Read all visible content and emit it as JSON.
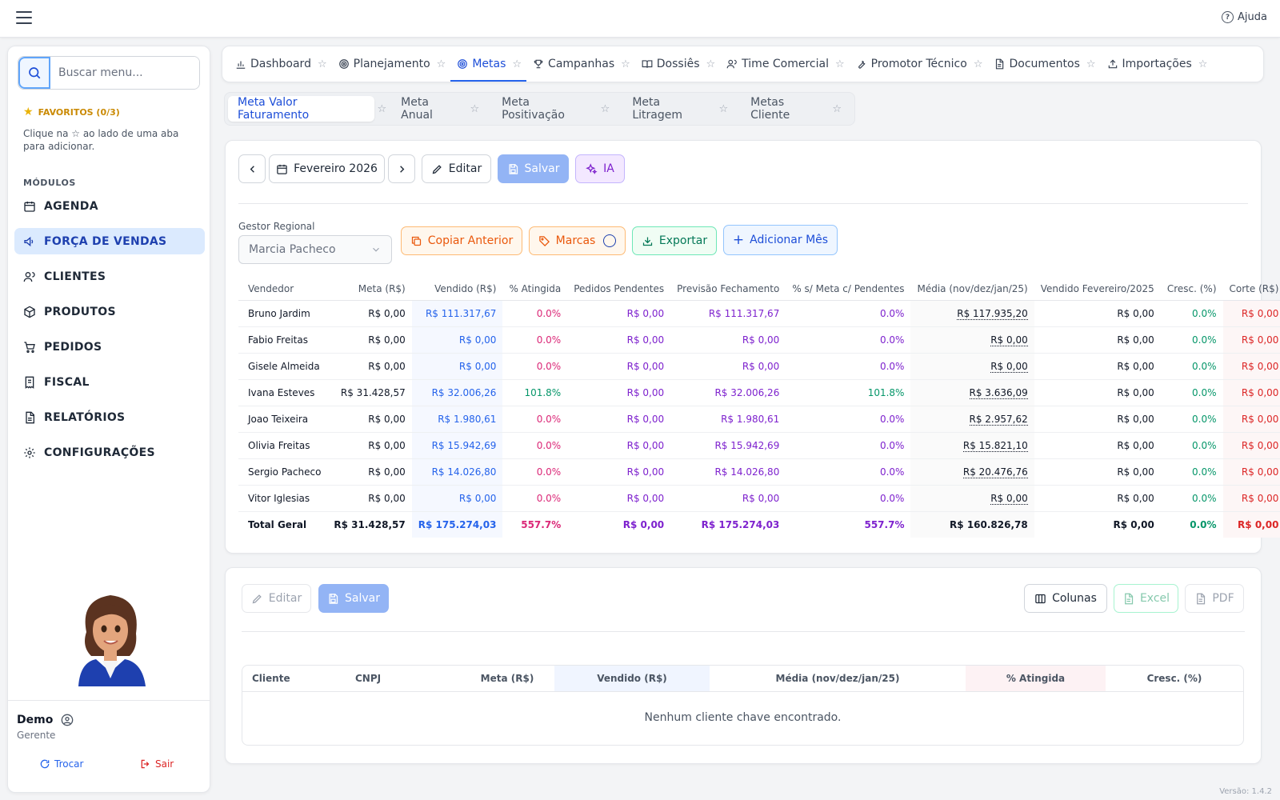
{
  "header": {
    "help_label": "Ajuda"
  },
  "sidebar": {
    "search_placeholder": "Buscar menu...",
    "favorites_title": "FAVORITOS (0/3)",
    "favorites_hint": "Clique na ☆ ao lado de uma aba para adicionar.",
    "modules_title": "MÓDULOS",
    "items": [
      {
        "label": "AGENDA",
        "icon": "calendar-icon"
      },
      {
        "label": "FORÇA DE VENDAS",
        "icon": "megaphone-icon",
        "active": true
      },
      {
        "label": "CLIENTES",
        "icon": "users-icon"
      },
      {
        "label": "PRODUTOS",
        "icon": "package-icon"
      },
      {
        "label": "PEDIDOS",
        "icon": "cart-icon"
      },
      {
        "label": "FISCAL",
        "icon": "receipt-icon"
      },
      {
        "label": "RELATÓRIOS",
        "icon": "file-icon"
      },
      {
        "label": "CONFIGURAÇÕES",
        "icon": "gear-icon"
      }
    ],
    "user": {
      "name": "Demo",
      "role": "Gerente",
      "switch_label": "Trocar",
      "logout_label": "Sair"
    }
  },
  "main_tabs": [
    {
      "label": "Dashboard"
    },
    {
      "label": "Planejamento"
    },
    {
      "label": "Metas",
      "active": true
    },
    {
      "label": "Campanhas"
    },
    {
      "label": "Dossiês"
    },
    {
      "label": "Time Comercial"
    },
    {
      "label": "Promotor Técnico"
    },
    {
      "label": "Documentos"
    },
    {
      "label": "Importações"
    }
  ],
  "sub_tabs": [
    {
      "label": "Meta Valor Faturamento",
      "active": true
    },
    {
      "label": "Meta Anual"
    },
    {
      "label": "Meta Positivação"
    },
    {
      "label": "Meta Litragem"
    },
    {
      "label": "Metas Cliente"
    }
  ],
  "toolbar": {
    "period": "Fevereiro 2026",
    "edit": "Editar",
    "save": "Salvar",
    "ai": "IA"
  },
  "filters": {
    "gestor_label": "Gestor Regional",
    "gestor_value": "Marcia Pacheco",
    "copy": "Copiar Anterior",
    "brands": "Marcas",
    "export": "Exportar",
    "add_month": "Adicionar Mês"
  },
  "table": {
    "columns": [
      "Vendedor",
      "Meta (R$)",
      "Vendido (R$)",
      "% Atingida",
      "Pedidos Pendentes",
      "Previsão Fechamento",
      "% s/ Meta c/ Pendentes",
      "Média (nov/dez/jan/25)",
      "Vendido Fevereiro/2025",
      "Cresc. (%)",
      "Corte (R$)"
    ],
    "rows": [
      [
        "Bruno Jardim",
        "R$ 0,00",
        "R$ 111.317,67",
        "0.0%",
        "R$ 0,00",
        "R$ 111.317,67",
        "0.0%",
        "R$ 117.935,20",
        "R$ 0,00",
        "0.0%",
        "R$ 0,00"
      ],
      [
        "Fabio Freitas",
        "R$ 0,00",
        "R$ 0,00",
        "0.0%",
        "R$ 0,00",
        "R$ 0,00",
        "0.0%",
        "R$ 0,00",
        "R$ 0,00",
        "0.0%",
        "R$ 0,00"
      ],
      [
        "Gisele Almeida",
        "R$ 0,00",
        "R$ 0,00",
        "0.0%",
        "R$ 0,00",
        "R$ 0,00",
        "0.0%",
        "R$ 0,00",
        "R$ 0,00",
        "0.0%",
        "R$ 0,00"
      ],
      [
        "Ivana Esteves",
        "R$ 31.428,57",
        "R$ 32.006,26",
        "101.8%",
        "R$ 0,00",
        "R$ 32.006,26",
        "101.8%",
        "R$ 3.636,09",
        "R$ 0,00",
        "0.0%",
        "R$ 0,00"
      ],
      [
        "Joao Teixeira",
        "R$ 0,00",
        "R$ 1.980,61",
        "0.0%",
        "R$ 0,00",
        "R$ 1.980,61",
        "0.0%",
        "R$ 2.957,62",
        "R$ 0,00",
        "0.0%",
        "R$ 0,00"
      ],
      [
        "Olivia Freitas",
        "R$ 0,00",
        "R$ 15.942,69",
        "0.0%",
        "R$ 0,00",
        "R$ 15.942,69",
        "0.0%",
        "R$ 15.821,10",
        "R$ 0,00",
        "0.0%",
        "R$ 0,00"
      ],
      [
        "Sergio Pacheco",
        "R$ 0,00",
        "R$ 14.026,80",
        "0.0%",
        "R$ 0,00",
        "R$ 14.026,80",
        "0.0%",
        "R$ 20.476,76",
        "R$ 0,00",
        "0.0%",
        "R$ 0,00"
      ],
      [
        "Vitor Iglesias",
        "R$ 0,00",
        "R$ 0,00",
        "0.0%",
        "R$ 0,00",
        "R$ 0,00",
        "0.0%",
        "R$ 0,00",
        "R$ 0,00",
        "0.0%",
        "R$ 0,00"
      ]
    ],
    "total": [
      "Total Geral",
      "R$ 31.428,57",
      "R$ 175.274,03",
      "557.7%",
      "R$ 0,00",
      "R$ 175.274,03",
      "557.7%",
      "R$ 160.826,78",
      "R$ 0,00",
      "0.0%",
      "R$ 0,00"
    ]
  },
  "clients": {
    "edit": "Editar",
    "save": "Salvar",
    "columns_btn": "Colunas",
    "excel": "Excel",
    "pdf": "PDF",
    "columns": [
      "Cliente",
      "CNPJ",
      "Meta (R$)",
      "Vendido (R$)",
      "Média (nov/dez/jan/25)",
      "% Atingida",
      "Cresc. (%)"
    ],
    "empty": "Nenhum cliente chave encontrado."
  },
  "version": "Versão: 1.4.2",
  "colors": {
    "primary": "#2563eb",
    "active_bg": "#dbeafe",
    "orange": "#ea580c",
    "green": "#059669",
    "purple": "#7e22ce",
    "pink": "#db2777",
    "red": "#dc2626"
  }
}
